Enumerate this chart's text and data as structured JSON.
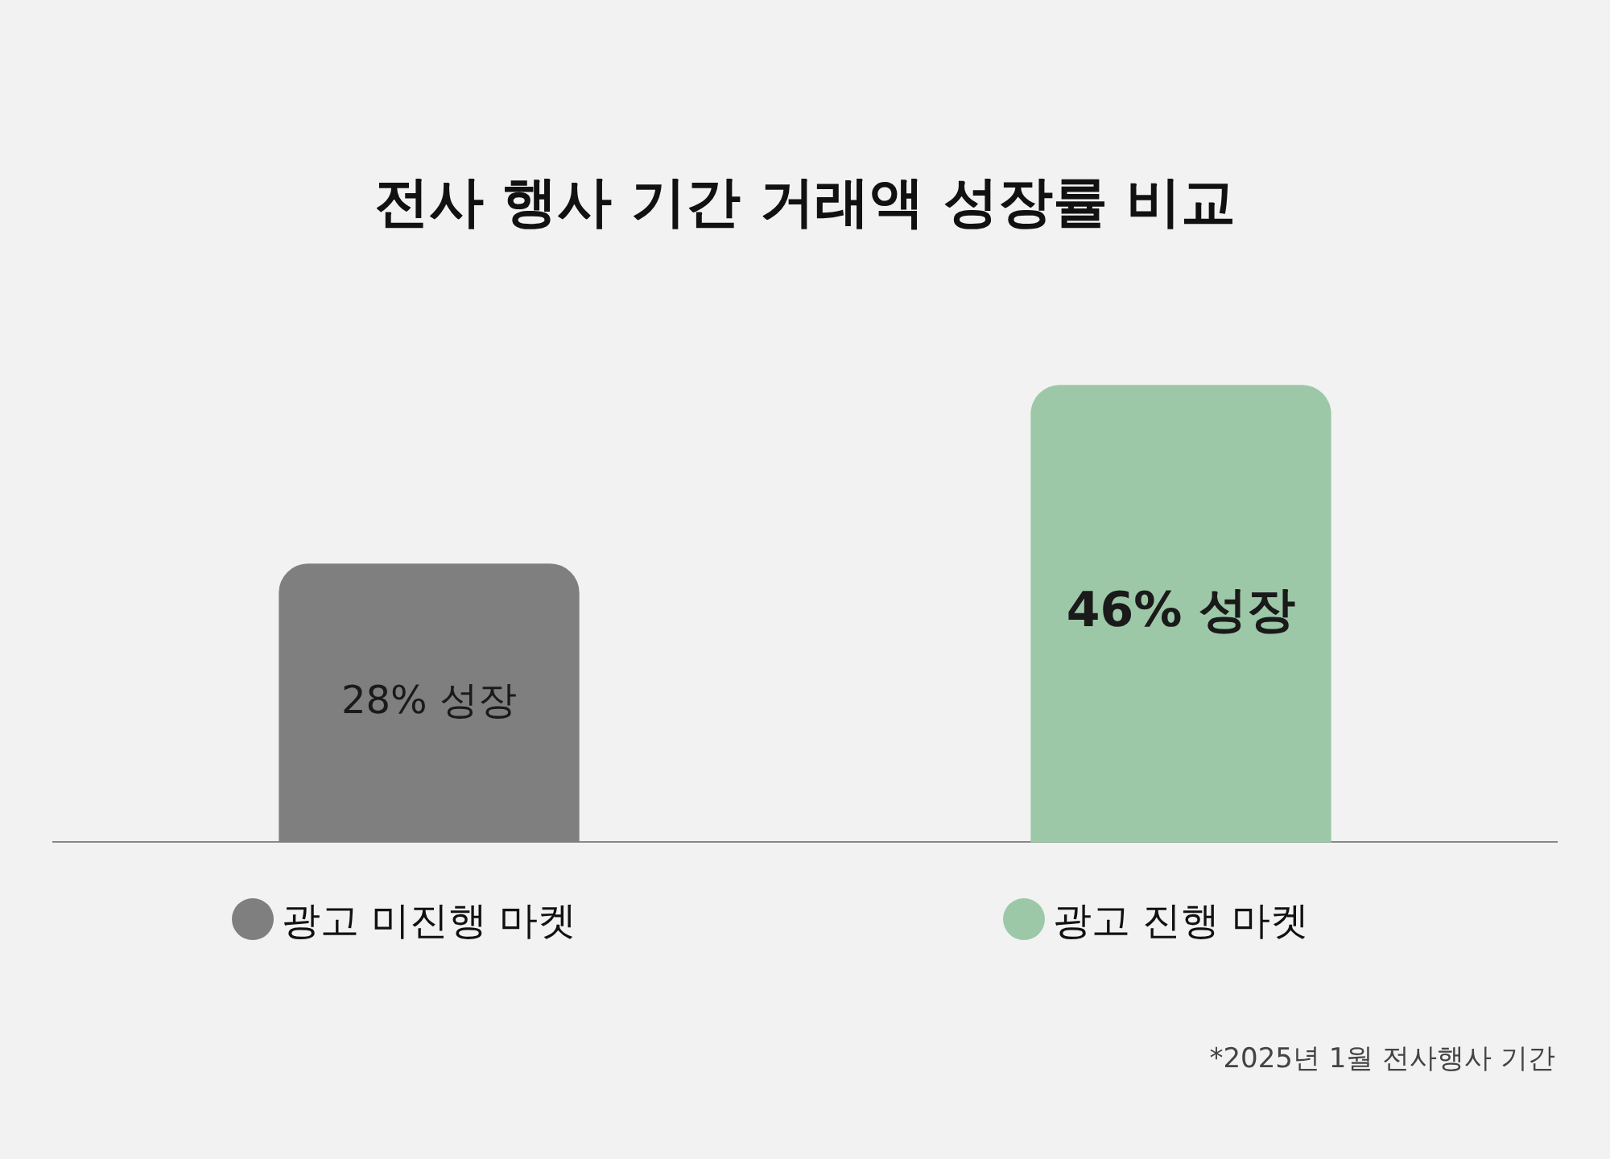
{
  "chart_data": {
    "type": "bar",
    "title": "전사 행사 기간 거래액 성장률 비교",
    "categories": [
      "광고 미진행 마켓",
      "광고 진행 마켓"
    ],
    "values": [
      28,
      46
    ],
    "colors": [
      "#7f7f7f",
      "#9dc8a8"
    ],
    "value_labels": [
      "28% 성장",
      "46% 성장"
    ],
    "annotations": [
      "*2025년 1월 전사행사 기간"
    ],
    "grid": false,
    "legend": false
  }
}
